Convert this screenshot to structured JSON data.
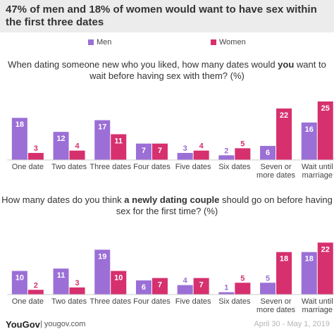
{
  "title": "47% of men and 18% of women would want to have sex within the first three dates",
  "legend": {
    "men": "Men",
    "women": "Women"
  },
  "colors": {
    "men": "#9b6fd6",
    "women": "#d6306e",
    "header_bg": "#ececec"
  },
  "footer": {
    "logo": "YouGov",
    "site": "| yougov.com",
    "date": "April 30 - May 1, 2019"
  },
  "questions": [
    {
      "pre": "When dating someone new who you liked, how many dates would ",
      "bold": "you",
      "post": " want to wait before having sex with them? (%)"
    },
    {
      "pre": "How many dates do you think ",
      "bold": "a newly dating couple",
      "post": " should go on before having sex for the first time? (%)"
    }
  ],
  "chart_data": [
    {
      "type": "bar",
      "categories": [
        "One date",
        "Two dates",
        "Three dates",
        "Four dates",
        "Five dates",
        "Six dates",
        "Seven or more dates",
        "Wait until marriage"
      ],
      "series": [
        {
          "name": "Men",
          "values": [
            18,
            12,
            17,
            7,
            3,
            2,
            6,
            16
          ]
        },
        {
          "name": "Women",
          "values": [
            3,
            4,
            11,
            7,
            4,
            5,
            22,
            25
          ]
        }
      ],
      "ylim": [
        0,
        25
      ]
    },
    {
      "type": "bar",
      "categories": [
        "One date",
        "Two dates",
        "Three dates",
        "Four dates",
        "Five dates",
        "Six dates",
        "Seven or more dates",
        "Wait until marriage"
      ],
      "series": [
        {
          "name": "Men",
          "values": [
            10,
            11,
            19,
            6,
            4,
            1,
            5,
            18
          ]
        },
        {
          "name": "Women",
          "values": [
            2,
            3,
            10,
            7,
            7,
            5,
            18,
            22
          ]
        }
      ],
      "ylim": [
        0,
        22
      ]
    }
  ]
}
